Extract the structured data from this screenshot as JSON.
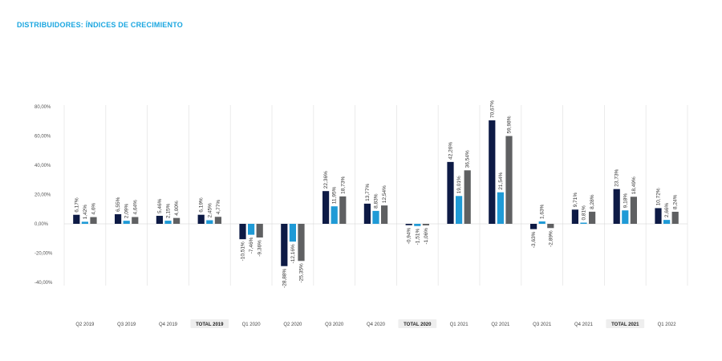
{
  "title": "DISTRIBUIDORES: ÍNDICES DE CRECIMIENTO",
  "chart_data": {
    "type": "bar",
    "title": "DISTRIBUIDORES: ÍNDICES DE CRECIMIENTO",
    "xlabel": "",
    "ylabel": "",
    "ylim": [
      -40,
      80
    ],
    "y_ticks": [
      "80,00%",
      "60,00%",
      "40,00%",
      "20,00%",
      "0,00%",
      "-20,00%",
      "-40,00%"
    ],
    "categories": [
      "Q2 2019",
      "Q3 2019",
      "Q4 2019",
      "TOTAL 2019",
      "Q1 2020",
      "Q2 2020",
      "Q3 2020",
      "Q4 2020",
      "TOTAL 2020",
      "Q1 2021",
      "Q2 2021",
      "Q3 2021",
      "Q4 2021",
      "TOTAL 2021",
      "Q1 2022"
    ],
    "total_categories": [
      "TOTAL 2019",
      "TOTAL 2020",
      "TOTAL 2021"
    ],
    "grid": "vertical separators",
    "legend": "none",
    "series": [
      {
        "color": "#0d1a45",
        "values": [
          6.17,
          6.55,
          5.46,
          6.19,
          -10.51,
          -28.88,
          22.36,
          13.77,
          -0.94,
          42.26,
          70.67,
          -3.63,
          9.71,
          23.73,
          10.72
        ],
        "labels": [
          "6,17%",
          "6,55%",
          "5,46%",
          "6,19%",
          "-10,51%",
          "-28,88%",
          "22,36%",
          "13,77%",
          "-0,94%",
          "42,26%",
          "70,67%",
          "-3,63%",
          "9,71%",
          "23,73%",
          "10,72%"
        ]
      },
      {
        "color": "#1f9ad6",
        "values": [
          1.42,
          2.09,
          2.15,
          2.45,
          -7.46,
          -12.16,
          11.95,
          8.83,
          -1.51,
          19.01,
          21.54,
          1.63,
          0.81,
          9.18,
          2.66
        ],
        "labels": [
          "1,42%",
          "2,09%",
          "2,15%",
          "2,45%",
          "-7,46%",
          "-12,16%",
          "11,95%",
          "8,83%",
          "-1,51%",
          "19,01%",
          "21,54%",
          "1,63%",
          "0,81%",
          "9,18%",
          "2,66%"
        ]
      },
      {
        "color": "#5f6062",
        "values": [
          4.6,
          4.64,
          4.0,
          4.77,
          -9.36,
          -25.35,
          18.73,
          12.54,
          -1.06,
          36.54,
          59.98,
          -2.89,
          8.28,
          18.49,
          8.24
        ],
        "labels": [
          "4,6%",
          "4,64%",
          "4,00%",
          "4,77%",
          "-9,36%",
          "-25,35%",
          "18,73%",
          "12,54%",
          "-1,06%",
          "36,54%",
          "59,98%",
          "-2,89%",
          "8,28%",
          "18,49%",
          "8,24%"
        ]
      }
    ]
  }
}
